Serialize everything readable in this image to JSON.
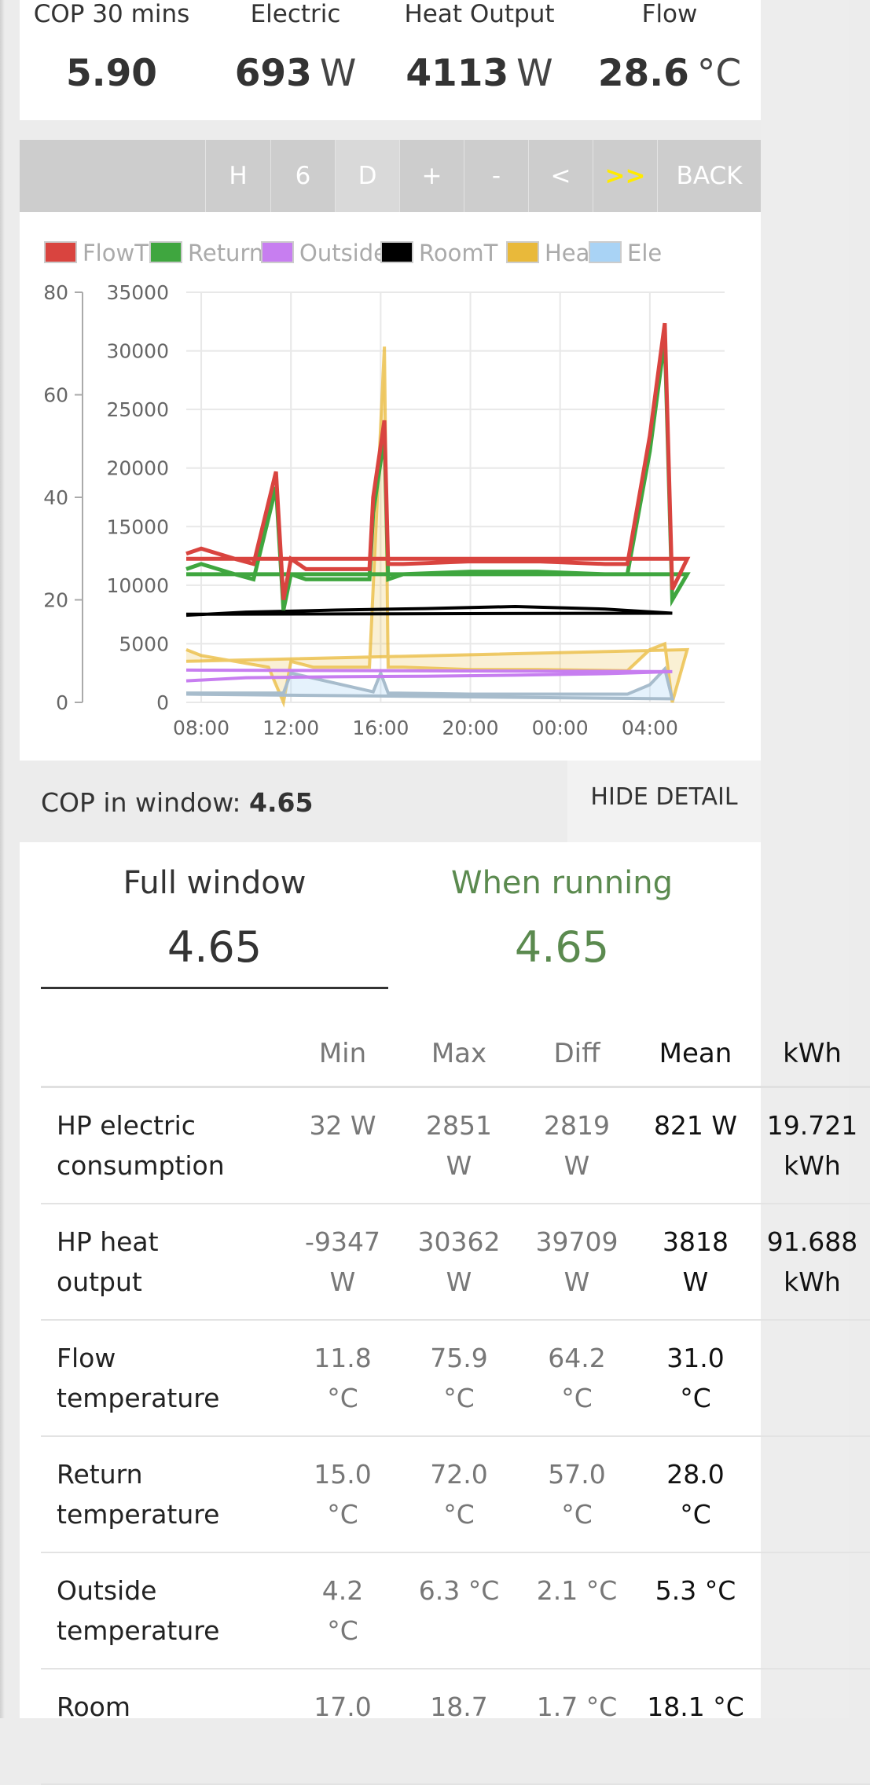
{
  "stats": [
    {
      "label": "COP 30 mins",
      "value": "5.90",
      "unit": ""
    },
    {
      "label": "Electric",
      "value": "693",
      "unit": "W"
    },
    {
      "label": "Heat Output",
      "value": "4113",
      "unit": "W"
    },
    {
      "label": "Flow",
      "value": "28.6",
      "unit": "°C"
    }
  ],
  "toolbar": {
    "buttons": [
      "H",
      "6",
      "D",
      "+",
      "-",
      "<",
      ">>",
      "BACK"
    ]
  },
  "colors": {
    "flowT": "#d9443f",
    "returnT": "#3fa63f",
    "outsideT": "#c77ef0",
    "roomT": "#000000",
    "heat": "#e9b93a",
    "elec": "#a9d3f5",
    "running_green": "#5b8a4f"
  },
  "chart_data": {
    "type": "line",
    "legend": [
      "FlowT",
      "ReturnT",
      "OutsideT",
      "RoomT",
      "Heat",
      "Ele"
    ],
    "x_ticks": [
      "08:00",
      "12:00",
      "16:00",
      "20:00",
      "00:00",
      "04:00"
    ],
    "y_left_ticks": [
      "80",
      "60",
      "40",
      "20",
      "0"
    ],
    "y_right_ticks": [
      "35000",
      "30000",
      "25000",
      "20000",
      "15000",
      "10000",
      "5000",
      "0"
    ],
    "y_left_range": [
      0,
      80
    ],
    "y_right_range": [
      0,
      35000
    ],
    "grid": true,
    "legend_position": "top",
    "series": [
      {
        "name": "FlowT",
        "axis": "left",
        "x": [
          "07:20",
          "08:00",
          "09:30",
          "10:20",
          "11:20",
          "11:40",
          "12:00",
          "12:40",
          "14:00",
          "15:30",
          "15:40",
          "16:10",
          "16:20",
          "17:00",
          "20:00",
          "23:00",
          "02:00",
          "03:00",
          "04:00",
          "04:40",
          "05:00",
          "05:40",
          "07:20"
        ],
        "values": [
          29,
          30,
          28,
          27,
          45,
          20,
          28,
          26,
          26,
          26,
          40,
          55,
          27,
          27,
          27.5,
          27.5,
          27,
          27,
          52,
          74,
          22,
          28,
          28
        ]
      },
      {
        "name": "ReturnT",
        "axis": "left",
        "x": [
          "07:20",
          "08:00",
          "09:30",
          "10:20",
          "11:20",
          "11:40",
          "12:00",
          "12:40",
          "14:00",
          "15:30",
          "15:40",
          "16:10",
          "16:20",
          "17:00",
          "20:00",
          "23:00",
          "02:00",
          "03:00",
          "04:00",
          "04:40",
          "05:00",
          "05:40",
          "07:20"
        ],
        "values": [
          26,
          27,
          25,
          24,
          42,
          18,
          25,
          24,
          24,
          24,
          37,
          52,
          24,
          25,
          25.5,
          25.5,
          25,
          25,
          49,
          71,
          20,
          25,
          25
        ]
      },
      {
        "name": "RoomT",
        "axis": "left",
        "x": [
          "07:20",
          "10:00",
          "14:00",
          "18:00",
          "22:00",
          "02:00",
          "05:00",
          "07:20"
        ],
        "values": [
          17.0,
          17.6,
          18.0,
          18.3,
          18.7,
          18.2,
          17.4,
          17.2
        ]
      },
      {
        "name": "OutsideT",
        "axis": "left",
        "x": [
          "07:20",
          "10:00",
          "14:00",
          "18:00",
          "22:00",
          "02:00",
          "05:00",
          "07:20"
        ],
        "values": [
          4.2,
          4.8,
          5.0,
          5.1,
          5.3,
          5.6,
          6.0,
          6.3
        ]
      },
      {
        "name": "Heat",
        "axis": "right",
        "x": [
          "07:20",
          "08:00",
          "09:30",
          "11:00",
          "11:40",
          "12:00",
          "13:00",
          "15:30",
          "16:10",
          "16:20",
          "17:00",
          "20:00",
          "23:00",
          "03:00",
          "04:00",
          "04:40",
          "05:00",
          "05:40",
          "07:20"
        ],
        "values": [
          4500,
          4000,
          3500,
          3000,
          -500,
          3500,
          3000,
          3000,
          30362,
          3000,
          3000,
          2800,
          2800,
          2700,
          4500,
          5000,
          -500,
          4500,
          3500
        ]
      },
      {
        "name": "Ele",
        "axis": "right",
        "x": [
          "07:20",
          "11:40",
          "12:00",
          "15:40",
          "16:00",
          "16:20",
          "20:00",
          "03:00",
          "04:00",
          "04:40",
          "05:00",
          "07:20"
        ],
        "values": [
          800,
          800,
          2500,
          900,
          2500,
          800,
          700,
          700,
          1500,
          2851,
          300,
          700
        ]
      }
    ]
  },
  "cop_bar": {
    "label": "COP in window:",
    "value": "4.65",
    "hide_label": "HIDE DETAIL"
  },
  "window_tabs": [
    {
      "label": "Full window",
      "value": "4.65"
    },
    {
      "label": "When running",
      "value": "4.65"
    }
  ],
  "table": {
    "headers": [
      "",
      "Min",
      "Max",
      "Diff",
      "Mean",
      "kWh"
    ],
    "rows": [
      {
        "name": [
          "HP electric",
          "consumption"
        ],
        "min": [
          "32 W"
        ],
        "max": [
          "2851",
          "W"
        ],
        "diff": [
          "2819",
          "W"
        ],
        "mean": [
          "821 W"
        ],
        "kwh": [
          "19.721",
          "kWh"
        ]
      },
      {
        "name": [
          "HP heat",
          "output"
        ],
        "min": [
          "-9347",
          "W"
        ],
        "max": [
          "30362",
          "W"
        ],
        "diff": [
          "39709",
          "W"
        ],
        "mean": [
          "3818",
          "W"
        ],
        "kwh": [
          "91.688",
          "kWh"
        ]
      },
      {
        "name": [
          "Flow",
          "temperature"
        ],
        "min": [
          "11.8",
          "°C"
        ],
        "max": [
          "75.9",
          "°C"
        ],
        "diff": [
          "64.2",
          "°C"
        ],
        "mean": [
          "31.0",
          "°C"
        ],
        "kwh": []
      },
      {
        "name": [
          "Return",
          "temperature"
        ],
        "min": [
          "15.0",
          "°C"
        ],
        "max": [
          "72.0",
          "°C"
        ],
        "diff": [
          "57.0",
          "°C"
        ],
        "mean": [
          "28.0",
          "°C"
        ],
        "kwh": []
      },
      {
        "name": [
          "Outside",
          "temperature"
        ],
        "min": [
          "4.2",
          "°C"
        ],
        "max": [
          "6.3 °C"
        ],
        "diff": [
          "2.1 °C"
        ],
        "mean": [
          "5.3 °C"
        ],
        "kwh": []
      },
      {
        "name": [
          "Room"
        ],
        "min": [
          "17.0"
        ],
        "max": [
          "18.7"
        ],
        "diff": [
          "1.7 °C"
        ],
        "mean": [
          "18.1 °C"
        ],
        "kwh": []
      }
    ]
  }
}
